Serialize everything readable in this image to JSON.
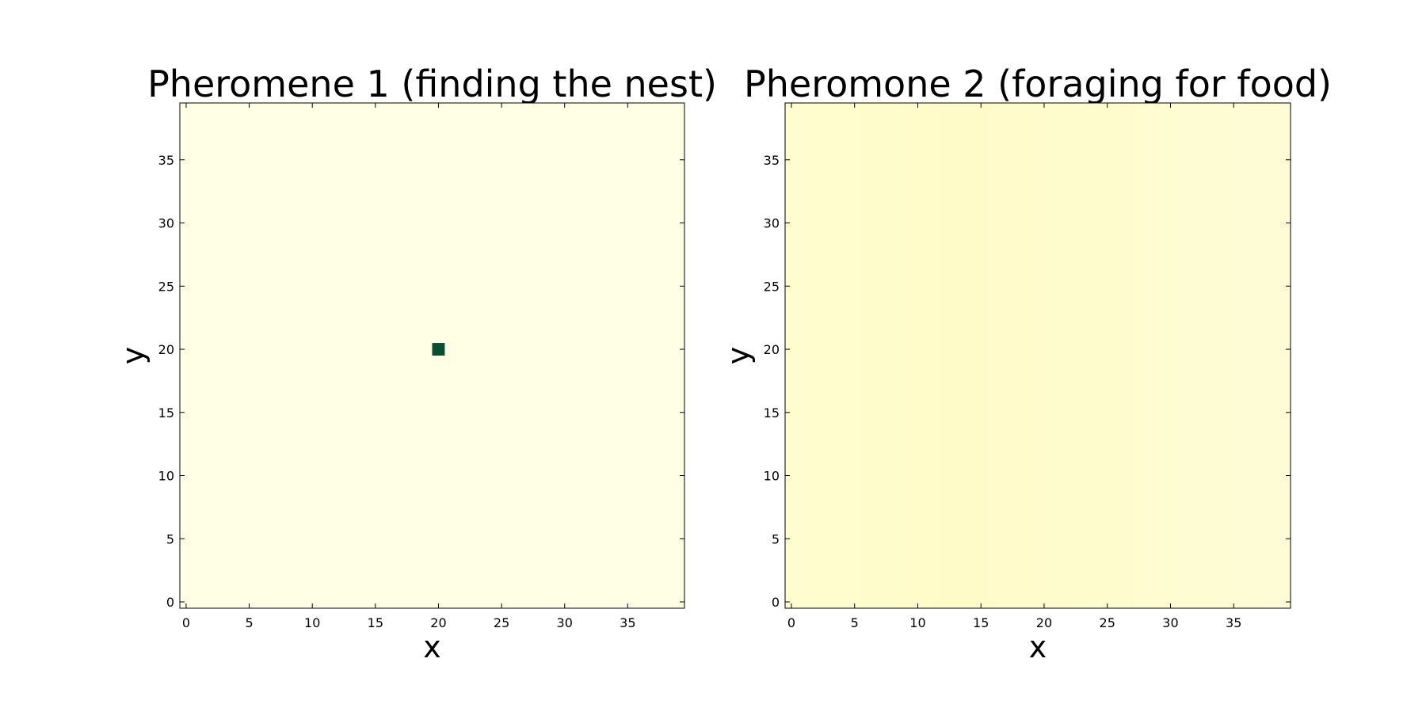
{
  "chart_data": [
    {
      "type": "heatmap",
      "title": "Pheromene 1 (finding the nest)",
      "xlabel": "x",
      "ylabel": "y",
      "xlim": [
        -0.5,
        39.5
      ],
      "ylim": [
        -0.5,
        39.5
      ],
      "xticks": [
        0,
        5,
        10,
        15,
        20,
        25,
        30,
        35
      ],
      "yticks": [
        0,
        5,
        10,
        15,
        20,
        25,
        30,
        35
      ],
      "grid_size": [
        40,
        40
      ],
      "colormap": "YlGn",
      "background_value": 0.0,
      "hotspots": [
        {
          "x": 20,
          "y": 20,
          "value": 1.0
        }
      ],
      "colors": {
        "low": "#ffffe5",
        "high": "#0b4d32"
      }
    },
    {
      "type": "heatmap",
      "title": "Pheromone 2 (foraging for food)",
      "xlabel": "x",
      "ylabel": "y",
      "xlim": [
        -0.5,
        39.5
      ],
      "ylim": [
        -0.5,
        39.5
      ],
      "xticks": [
        0,
        5,
        10,
        15,
        20,
        25,
        30,
        35
      ],
      "yticks": [
        0,
        5,
        10,
        15,
        20,
        25,
        30,
        35
      ],
      "grid_size": [
        40,
        40
      ],
      "colormap": "YlOrRd",
      "background_value": 0.04,
      "hotspots": [],
      "colors": {
        "low": "#fffdd0",
        "mid": "#fffbc8",
        "high": "#fefcd6"
      }
    }
  ]
}
